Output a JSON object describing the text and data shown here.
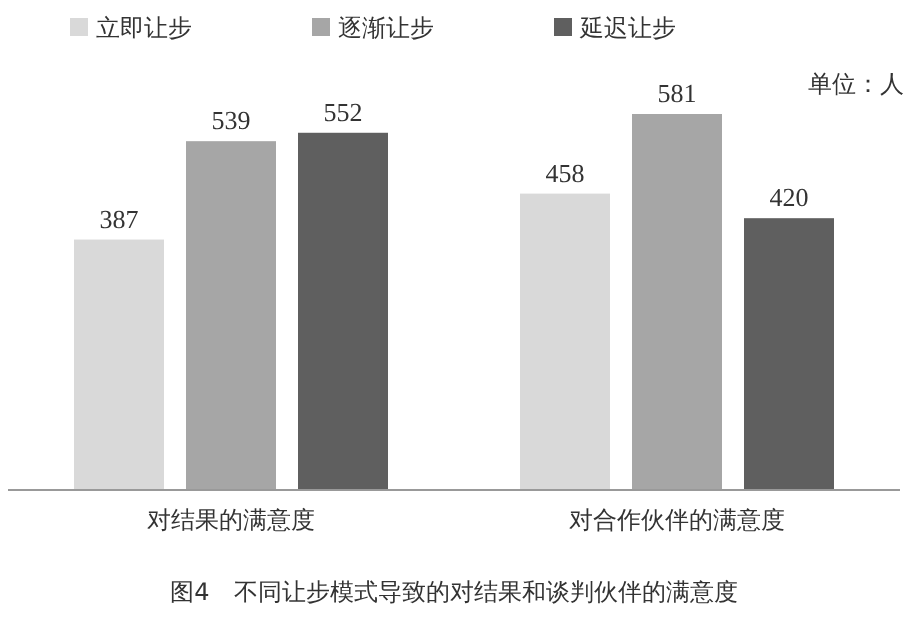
{
  "chart_data": {
    "type": "bar",
    "categories": [
      "对结果的满意度",
      "对合作伙伴的满意度"
    ],
    "series": [
      {
        "name": "立即让步",
        "color": "#d9d9d9",
        "values": [
          387,
          458
        ]
      },
      {
        "name": "逐渐让步",
        "color": "#a6a6a6",
        "values": [
          539,
          581
        ]
      },
      {
        "name": "延迟让步",
        "color": "#5f5f5f",
        "values": [
          552,
          420
        ]
      }
    ],
    "data_labels": true,
    "legend": "top left",
    "annotations": [
      "单位：人",
      "图4　不同让步模式导致的对结果和谈判伙伴的满意度"
    ]
  }
}
